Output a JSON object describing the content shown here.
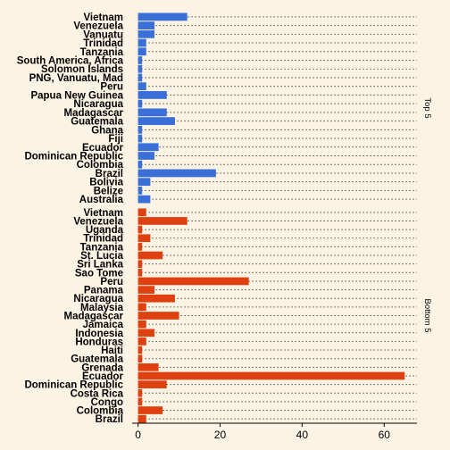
{
  "chart_data": {
    "type": "bar",
    "orientation": "horizontal",
    "xlim": [
      -1,
      68
    ],
    "xticks": [
      0,
      20,
      40,
      60
    ],
    "xlabel": "",
    "ylabel": "",
    "title": "",
    "grid": "dotted horizontal",
    "panels": [
      {
        "label": "Top 5",
        "color": "#3a6fd8",
        "categories": [
          "Vietnam",
          "Venezuela",
          "Vanuatu",
          "Trinidad",
          "Tanzania",
          "South America, Africa",
          "Solomon Islands",
          "PNG, Vanuatu, Mad",
          "Peru",
          "Papua New Guinea",
          "Nicaragua",
          "Madagascar",
          "Guatemala",
          "Ghana",
          "Fiji",
          "Ecuador",
          "Dominican Republic",
          "Colombia",
          "Brazil",
          "Bolivia",
          "Belize",
          "Australia"
        ],
        "values": [
          12,
          4,
          4,
          2,
          2,
          1,
          1,
          1,
          2,
          7,
          1,
          7,
          9,
          1,
          1,
          5,
          4,
          1,
          19,
          3,
          1,
          3
        ]
      },
      {
        "label": "Bottom 5",
        "color": "#de4010",
        "categories": [
          "Vietnam",
          "Venezuela",
          "Uganda",
          "Trinidad",
          "Tanzania",
          "St. Lucia",
          "Sri Lanka",
          "Sao Tome",
          "Peru",
          "Panama",
          "Nicaragua",
          "Malaysia",
          "Madagascar",
          "Jamaica",
          "Indonesia",
          "Honduras",
          "Haiti",
          "Guatemala",
          "Grenada",
          "Ecuador",
          "Dominican Republic",
          "Costa Rica",
          "Congo",
          "Colombia",
          "Brazil"
        ],
        "values": [
          2,
          12,
          1,
          3,
          1,
          6,
          1,
          1,
          27,
          4,
          9,
          2,
          10,
          2,
          4,
          2,
          1,
          1,
          5,
          65,
          7,
          1,
          1,
          6,
          2
        ]
      }
    ]
  }
}
